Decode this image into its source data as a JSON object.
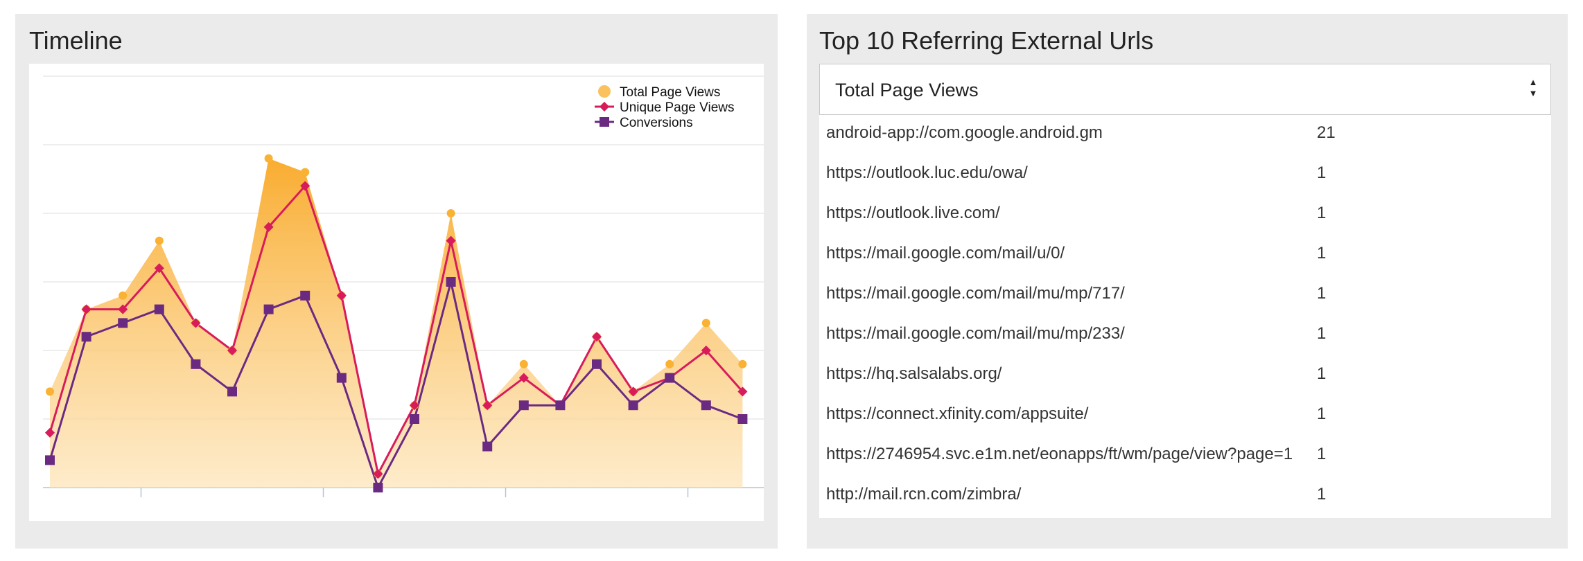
{
  "timeline": {
    "title": "Timeline"
  },
  "referrers": {
    "title": "Top 10 Referring External Urls",
    "metric_select": {
      "selected": "Total Page Views"
    },
    "rows": [
      {
        "url": "android-app://com.google.android.gm",
        "count": "21"
      },
      {
        "url": "https://outlook.luc.edu/owa/",
        "count": "1"
      },
      {
        "url": "https://outlook.live.com/",
        "count": "1"
      },
      {
        "url": "https://mail.google.com/mail/u/0/",
        "count": "1"
      },
      {
        "url": "https://mail.google.com/mail/mu/mp/717/",
        "count": "1"
      },
      {
        "url": "https://mail.google.com/mail/mu/mp/233/",
        "count": "1"
      },
      {
        "url": "https://hq.salsalabs.org/",
        "count": "1"
      },
      {
        "url": "https://connect.xfinity.com/appsuite/",
        "count": "1"
      },
      {
        "url": "https://2746954.svc.e1m.net/eonapps/ft/wm/page/view?page=1",
        "count": "1"
      },
      {
        "url": "http://mail.rcn.com/zimbra/",
        "count": "1"
      }
    ]
  },
  "chart_data": {
    "type": "line",
    "title": "Timeline",
    "xlabel": "",
    "ylabel": "",
    "ylim": [
      0,
      30
    ],
    "grid": true,
    "legend_position": "top-right",
    "x": [
      1,
      2,
      3,
      4,
      5,
      6,
      7,
      8,
      9,
      10,
      11,
      12,
      13,
      14,
      15,
      16,
      17,
      18,
      19,
      20
    ],
    "series": [
      {
        "name": "Total Page Views",
        "marker": "circle",
        "render": "area",
        "color": "#f9b233",
        "values": [
          7,
          13,
          14,
          18,
          12,
          10,
          24,
          23,
          14,
          1,
          6,
          20,
          6,
          9,
          6,
          11,
          7,
          9,
          12,
          9
        ]
      },
      {
        "name": "Unique Page Views",
        "marker": "diamond",
        "render": "line",
        "color": "#d81b5b",
        "values": [
          4,
          13,
          13,
          16,
          12,
          10,
          19,
          22,
          14,
          1,
          6,
          18,
          6,
          8,
          6,
          11,
          7,
          8,
          10,
          7
        ]
      },
      {
        "name": "Conversions",
        "marker": "square",
        "render": "line",
        "color": "#6b2a82",
        "values": [
          2,
          11,
          12,
          13,
          9,
          7,
          13,
          14,
          8,
          0,
          5,
          15,
          3,
          6,
          6,
          9,
          6,
          8,
          6,
          5
        ]
      }
    ]
  }
}
